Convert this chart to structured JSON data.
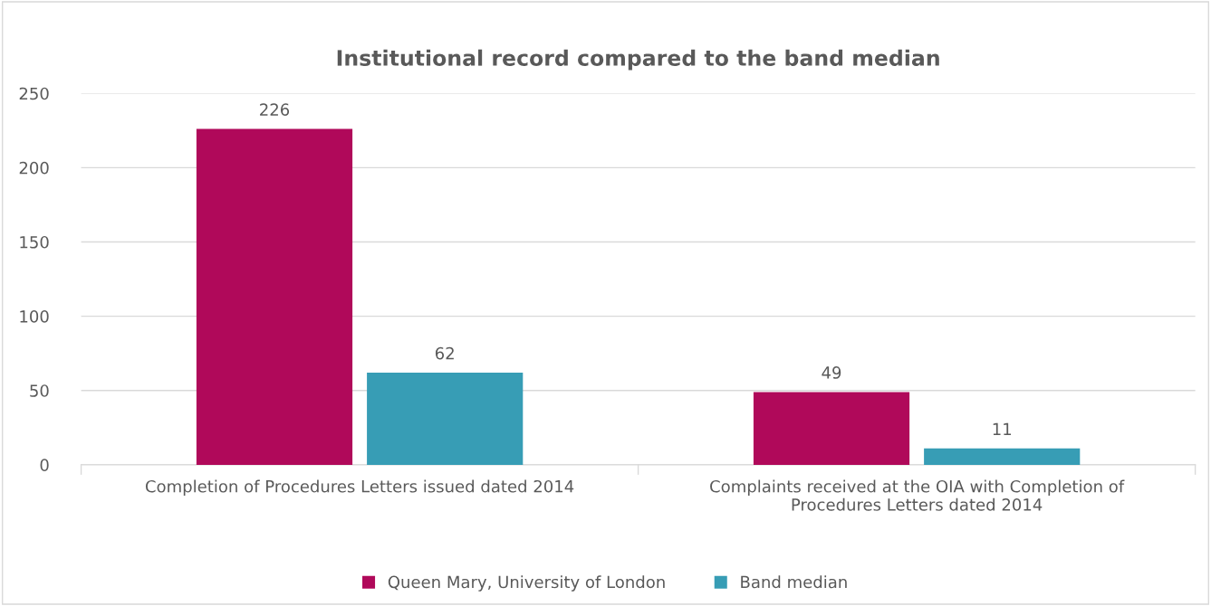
{
  "chart_data": {
    "type": "bar",
    "title": "Institutional record compared to the band median",
    "categories": [
      "Completion of Procedures Letters issued dated 2014",
      "Complaints received at the OIA with Completion of\nProcedures Letters dated 2014"
    ],
    "series": [
      {
        "name": "Queen Mary, University of London",
        "color": "#b0095a",
        "values": [
          226,
          49
        ]
      },
      {
        "name": "Band median",
        "color": "#379db5",
        "values": [
          62,
          11
        ]
      }
    ],
    "ylim": [
      0,
      250
    ],
    "yticks": [
      0,
      50,
      100,
      150,
      200,
      250
    ],
    "grid": "y",
    "legend": "bottom",
    "data_labels": true
  }
}
